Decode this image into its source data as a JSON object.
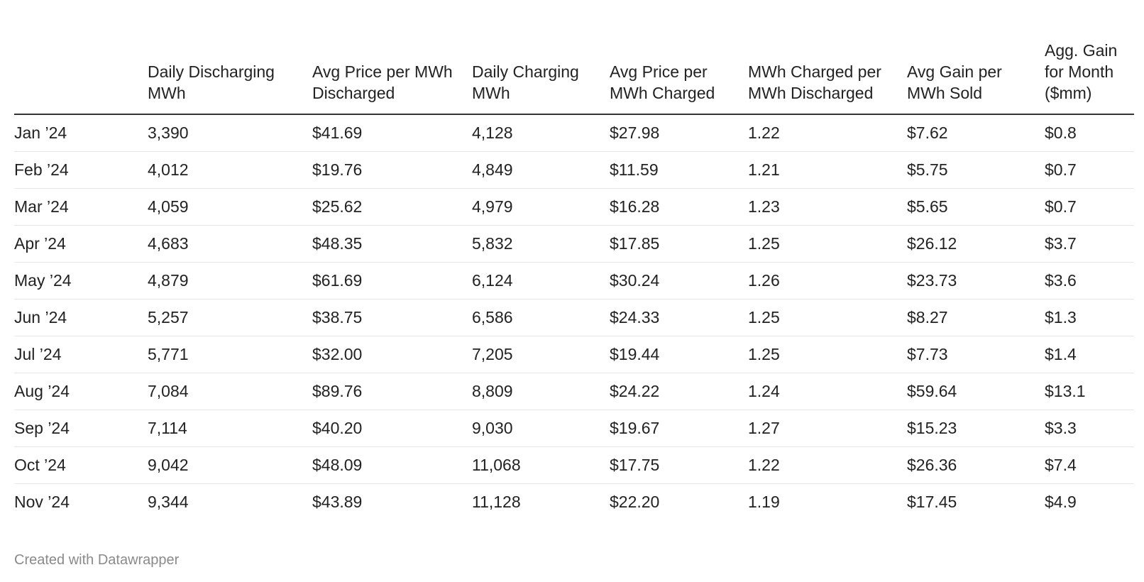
{
  "chart_data": {
    "type": "table",
    "columns": [
      "",
      "Daily Discharging MWh",
      "Avg Price per MWh Discharged",
      "Daily Charging MWh",
      "Avg Price per MWh Charged",
      "MWh Charged per MWh Discharged",
      "Avg Gain per MWh Sold",
      "Agg. Gain for Month ($mm)"
    ],
    "rows": [
      [
        "Jan ’24",
        "3,390",
        "$41.69",
        "4,128",
        "$27.98",
        "1.22",
        "$7.62",
        "$0.8"
      ],
      [
        "Feb ’24",
        "4,012",
        "$19.76",
        "4,849",
        "$11.59",
        "1.21",
        "$5.75",
        "$0.7"
      ],
      [
        "Mar ’24",
        "4,059",
        "$25.62",
        "4,979",
        "$16.28",
        "1.23",
        "$5.65",
        "$0.7"
      ],
      [
        "Apr ’24",
        "4,683",
        "$48.35",
        "5,832",
        "$17.85",
        "1.25",
        "$26.12",
        "$3.7"
      ],
      [
        "May ’24",
        "4,879",
        "$61.69",
        "6,124",
        "$30.24",
        "1.26",
        "$23.73",
        "$3.6"
      ],
      [
        "Jun ’24",
        "5,257",
        "$38.75",
        "6,586",
        "$24.33",
        "1.25",
        "$8.27",
        "$1.3"
      ],
      [
        "Jul ’24",
        "5,771",
        "$32.00",
        "7,205",
        "$19.44",
        "1.25",
        "$7.73",
        "$1.4"
      ],
      [
        "Aug ’24",
        "7,084",
        "$89.76",
        "8,809",
        "$24.22",
        "1.24",
        "$59.64",
        "$13.1"
      ],
      [
        "Sep ’24",
        "7,114",
        "$40.20",
        "9,030",
        "$19.67",
        "1.27",
        "$15.23",
        "$3.3"
      ],
      [
        "Oct ’24",
        "9,042",
        "$48.09",
        "11,068",
        "$17.75",
        "1.22",
        "$26.36",
        "$7.4"
      ],
      [
        "Nov ’24",
        "9,344",
        "$43.89",
        "11,128",
        "$22.20",
        "1.19",
        "$17.45",
        "$4.9"
      ]
    ]
  },
  "footer": {
    "credit": "Created with Datawrapper"
  },
  "colors": {
    "text": "#222222",
    "header_rule": "#333333",
    "row_rule": "#e6e6e6",
    "credit": "#8a8a8a"
  }
}
